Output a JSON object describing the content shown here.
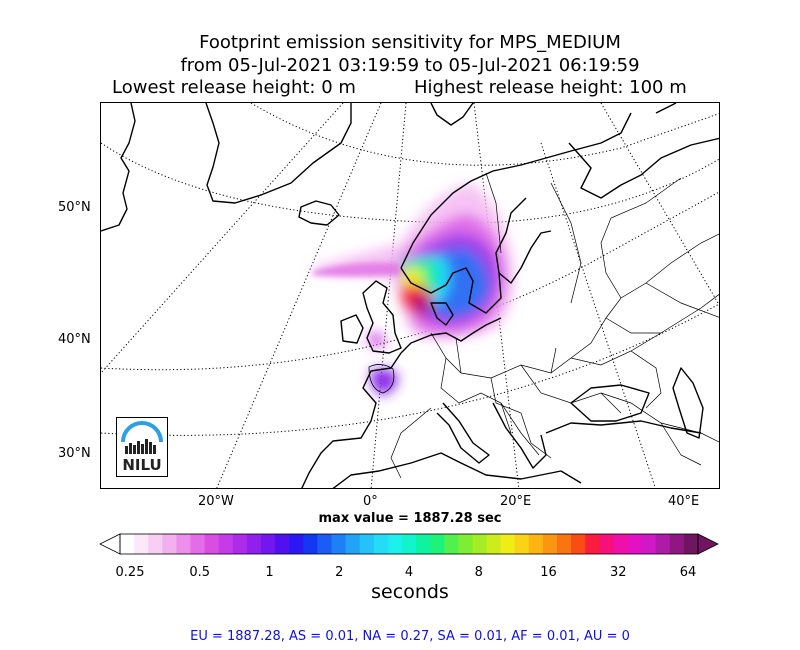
{
  "title": {
    "line1": "Footprint emission sensitivity for MPS_MEDIUM",
    "line2": "from 05-Jul-2021 03:19:59 to 05-Jul-2021 06:19:59",
    "lowest": "Lowest release height: 0 m",
    "highest": "Highest release height: 100 m"
  },
  "lat_labels": [
    "50°N",
    "40°N",
    "30°N"
  ],
  "lon_labels": [
    "20°W",
    "0°",
    "20°E",
    "40°E"
  ],
  "max_value": "max value = 1887.28 sec",
  "colorbar": {
    "ticks": [
      "0.25",
      "0.5",
      "1",
      "2",
      "4",
      "8",
      "16",
      "32",
      "64"
    ],
    "units": "seconds",
    "colors": [
      "#ffffff",
      "#fde8fb",
      "#f9cef5",
      "#f3b0ef",
      "#ec8fea",
      "#e46ce6",
      "#d94de3",
      "#c53be6",
      "#ac2cea",
      "#9020ed",
      "#7316ef",
      "#5010f0",
      "#2c18f2",
      "#1238f3",
      "#1a5cf4",
      "#1e80f6",
      "#21a4f7",
      "#23c2f8",
      "#24dcf8",
      "#1ef0ee",
      "#12f5cc",
      "#0cf4a0",
      "#1ef27a",
      "#52f04e",
      "#7cee34",
      "#a6ec24",
      "#cdec1c",
      "#efec16",
      "#fbd214",
      "#fbb412",
      "#fb9612",
      "#fb7412",
      "#fb4c16",
      "#fb1c3e",
      "#f7107a",
      "#ef10a8",
      "#e310c4",
      "#cf18c8",
      "#b01aa8",
      "#8e1882",
      "#6e1660"
    ]
  },
  "nilu_logo": "NILU",
  "stats": "EU = 1887.28,  AS = 0.01,  NA = 0.27,  SA = 0.01,  AF = 0.01,  AU = 0"
}
